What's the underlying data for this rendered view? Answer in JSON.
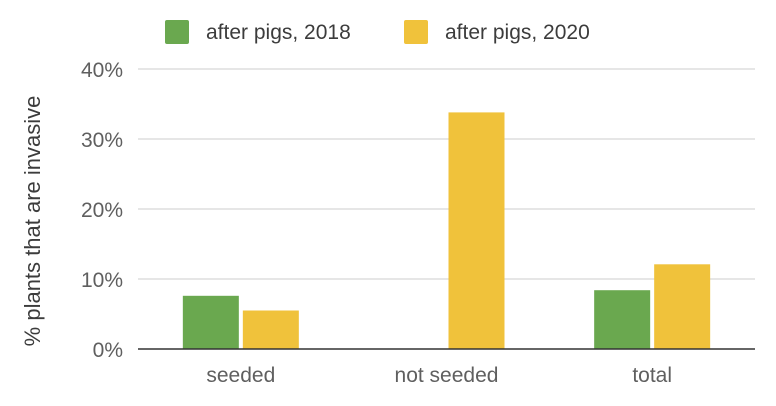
{
  "chart_data": {
    "type": "bar",
    "categories": [
      "seeded",
      "not seeded",
      "total"
    ],
    "series": [
      {
        "name": "after pigs, 2018",
        "values": [
          7.6,
          0,
          8.4
        ],
        "color": "#6aa84f"
      },
      {
        "name": "after pigs, 2020",
        "values": [
          5.5,
          33.8,
          12.1
        ],
        "color": "#f0c23b"
      }
    ],
    "title": "",
    "xlabel": "",
    "ylabel": "% plants that are invasive",
    "ylim": [
      0,
      40
    ],
    "yticks": [
      "0%",
      "10%",
      "20%",
      "30%",
      "40%"
    ],
    "grid": true,
    "legend_position": "top"
  }
}
